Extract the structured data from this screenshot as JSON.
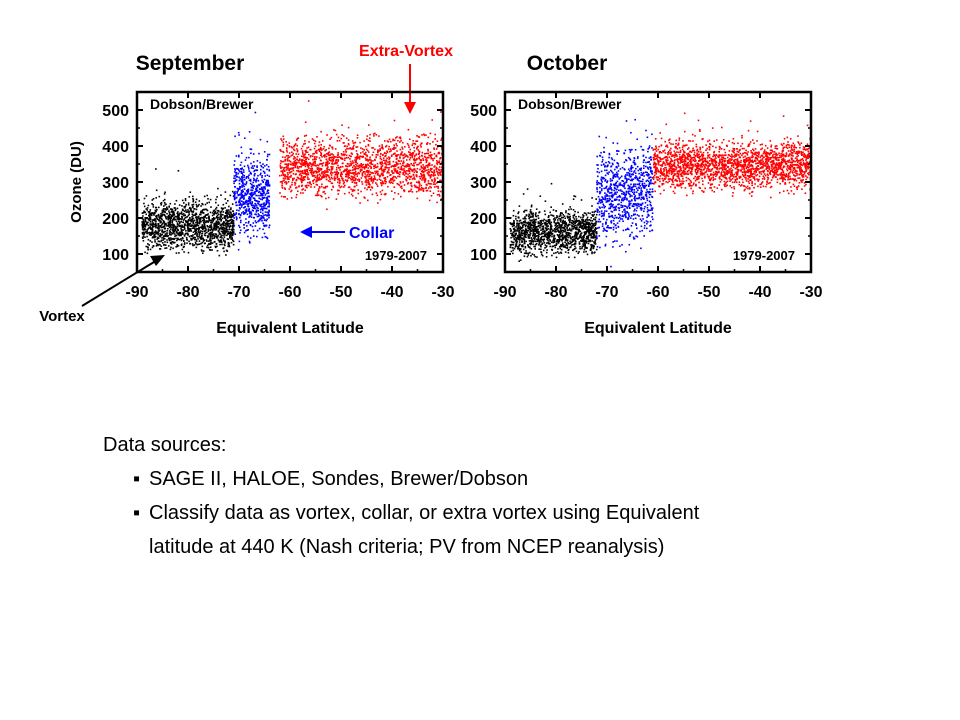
{
  "colors": {
    "vortex": "#000000",
    "collar": "#0000ff",
    "extra_vortex": "#ff0000",
    "annotation_red": "#ff0000",
    "annotation_blue": "#0000ff"
  },
  "annotations": {
    "extra_vortex": "Extra-Vortex",
    "collar": "Collar",
    "vortex": "Vortex"
  },
  "chart_data": [
    {
      "type": "scatter",
      "title": "September",
      "inset_label": "Dobson/Brewer",
      "period_label": "1979-2007",
      "xlabel": "Equivalent Latitude",
      "ylabel": "Ozone (DU)",
      "xlim": [
        -90,
        -30
      ],
      "ylim": [
        50,
        550
      ],
      "xticks": [
        "-90",
        "-80",
        "-70",
        "-60",
        "-50",
        "-40",
        "-30"
      ],
      "yticks": [
        "100",
        "200",
        "300",
        "400",
        "500"
      ],
      "series": [
        {
          "name": "Vortex",
          "color": "#000000",
          "x_range": [
            -89,
            -71
          ],
          "y_center": 180,
          "y_spread": 70,
          "count": 1400
        },
        {
          "name": "Collar",
          "color": "#0000ff",
          "x_range": [
            -71,
            -64
          ],
          "y_center": 260,
          "y_spread": 110,
          "count": 600
        },
        {
          "name": "Extra-Vortex",
          "color": "#ff0000",
          "x_range": [
            -62,
            -30
          ],
          "y_center": 340,
          "y_spread": 80,
          "count": 1800
        }
      ]
    },
    {
      "type": "scatter",
      "title": "October",
      "inset_label": "Dobson/Brewer",
      "period_label": "1979-2007",
      "xlabel": "Equivalent Latitude",
      "ylabel": "",
      "xlim": [
        -90,
        -30
      ],
      "ylim": [
        50,
        550
      ],
      "xticks": [
        "-90",
        "-80",
        "-70",
        "-60",
        "-50",
        "-40",
        "-30"
      ],
      "yticks": [
        "100",
        "200",
        "300",
        "400",
        "500"
      ],
      "series": [
        {
          "name": "Vortex",
          "color": "#000000",
          "x_range": [
            -89,
            -72
          ],
          "y_center": 160,
          "y_spread": 60,
          "count": 1300
        },
        {
          "name": "Collar",
          "color": "#0000ff",
          "x_range": [
            -72,
            -61
          ],
          "y_center": 270,
          "y_spread": 130,
          "count": 800
        },
        {
          "name": "Extra-Vortex",
          "color": "#ff0000",
          "x_range": [
            -61,
            -30
          ],
          "y_center": 345,
          "y_spread": 65,
          "count": 2000
        }
      ]
    }
  ],
  "notes": {
    "heading": "Data sources:",
    "bullet_char": "▪",
    "bullet1": "SAGE II, HALOE, Sondes, Brewer/Dobson",
    "bullet2": "Classify data as vortex, collar, or extra vortex using Equivalent",
    "bullet2_cont": "latitude at 440 K (Nash criteria; PV from NCEP reanalysis)"
  }
}
